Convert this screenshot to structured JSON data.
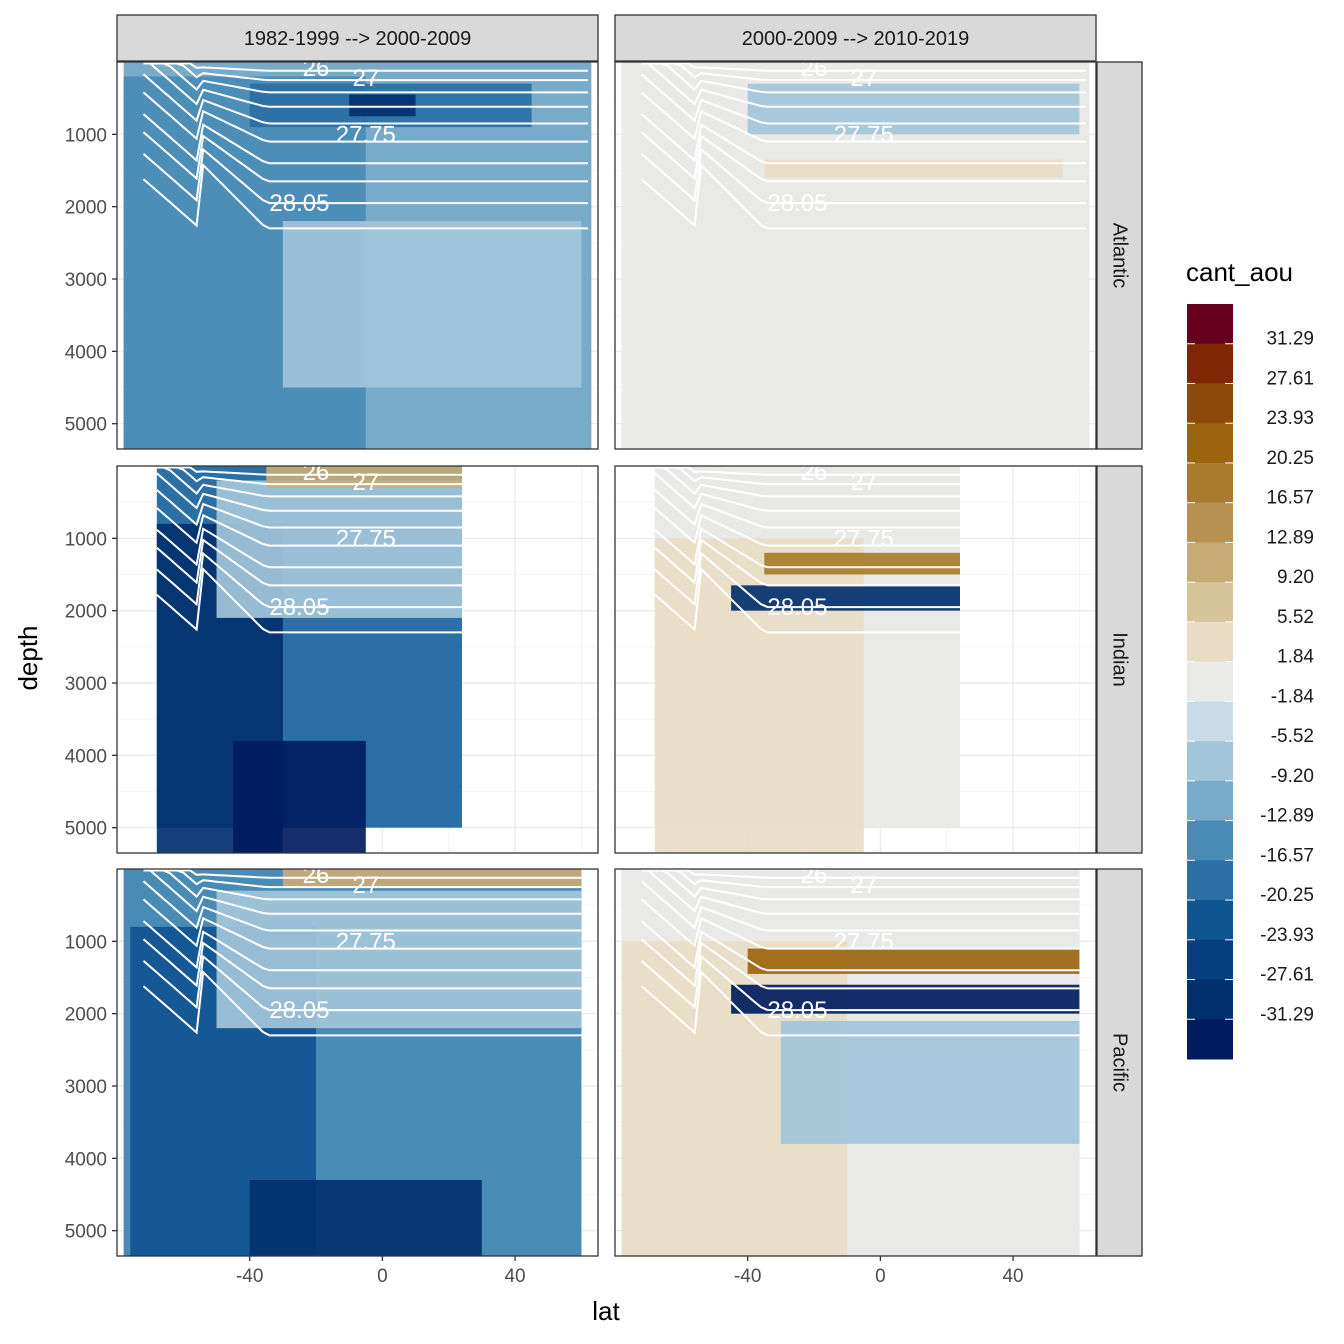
{
  "chart_data": {
    "type": "heatmap",
    "subtype": "faceted filled contour sections (depth vs latitude)",
    "xlabel": "lat",
    "ylabel": "depth",
    "xlim": [
      -80,
      65
    ],
    "ylim": [
      5350,
      0
    ],
    "x_ticks": [
      "-40",
      "0",
      "40"
    ],
    "x_tick_values": [
      -40,
      0,
      40
    ],
    "y_ticks": [
      "1000",
      "2000",
      "3000",
      "4000",
      "5000"
    ],
    "y_tick_values": [
      1000,
      2000,
      3000,
      4000,
      5000
    ],
    "columns": [
      "1982-1999 --> 2000-2009",
      "2000-2009 --> 2010-2019"
    ],
    "rows": [
      "Atlantic",
      "Indian",
      "Pacific"
    ],
    "legend": {
      "title": "cant_aou",
      "breaks": [
        "31.29",
        "27.61",
        "23.93",
        "20.25",
        "16.57",
        "12.89",
        "9.20",
        "5.52",
        "1.84",
        "-1.84",
        "-5.52",
        "-9.20",
        "-12.89",
        "-16.57",
        "-20.25",
        "-23.93",
        "-27.61",
        "-31.29"
      ],
      "colors": [
        "#67001f",
        "#7f2704",
        "#8c4a0a",
        "#9c640f",
        "#a87c2c",
        "#b89050",
        "#c7ab74",
        "#d8c49b",
        "#e8dcc4",
        "#e9eae8",
        "#c8dce8",
        "#a2c5da",
        "#77abc9",
        "#4a8bb6",
        "#2a6fa5",
        "#0f5592",
        "#063e80",
        "#02306e",
        "#001c5e"
      ]
    },
    "contour_labels": [
      "26",
      "27",
      "27.75",
      "28.05"
    ],
    "panels": [
      {
        "column": "1982-1999 --> 2000-2009",
        "row": "Atlantic",
        "dominant_level": "-12.89",
        "summary": "Moderate negative values in the deep south and mid-depths, strongest negative near 500-1000 m between 20S and 40N",
        "layers": [
          {
            "level": "-9.20",
            "lat_range": [
              -78,
              63
            ],
            "depth_range": [
              0,
              5350
            ]
          },
          {
            "level": "-12.89",
            "lat_range": [
              -78,
              -5
            ],
            "depth_range": [
              200,
              5350
            ]
          },
          {
            "level": "-5.52",
            "lat_range": [
              -30,
              60
            ],
            "depth_range": [
              2200,
              4500
            ]
          },
          {
            "level": "-16.57",
            "lat_range": [
              -40,
              45
            ],
            "depth_range": [
              300,
              900
            ]
          },
          {
            "level": "-27.61",
            "lat_range": [
              -10,
              10
            ],
            "depth_range": [
              450,
              750
            ]
          }
        ]
      },
      {
        "column": "2000-2009 --> 2010-2019",
        "row": "Atlantic",
        "dominant_level": "1.84",
        "summary": "Near-zero change almost everywhere; weak negative band at 500-1000 m and weak positive band near 1500 m",
        "layers": [
          {
            "level": "1.84",
            "lat_range": [
              -78,
              63
            ],
            "depth_range": [
              0,
              5350
            ]
          },
          {
            "level": "-5.52",
            "lat_range": [
              -40,
              60
            ],
            "depth_range": [
              300,
              1000
            ]
          },
          {
            "level": "5.52",
            "lat_range": [
              -35,
              55
            ],
            "depth_range": [
              1350,
              1600
            ]
          }
        ]
      },
      {
        "column": "1982-1999 --> 2000-2009",
        "row": "Indian",
        "dominant_level": "-27.61",
        "summary": "Very strong negative values in the deep southern Indian; positive near surface north of 30S",
        "layers": [
          {
            "level": "-16.57",
            "lat_range": [
              -68,
              24
            ],
            "depth_range": [
              0,
              5000
            ]
          },
          {
            "level": "-27.61",
            "lat_range": [
              -68,
              -30
            ],
            "depth_range": [
              800,
              5350
            ]
          },
          {
            "level": "-31.29",
            "lat_range": [
              -45,
              -5
            ],
            "depth_range": [
              3800,
              5350
            ]
          },
          {
            "level": "-5.52",
            "lat_range": [
              -50,
              24
            ],
            "depth_range": [
              200,
              2100
            ]
          },
          {
            "level": "12.89",
            "lat_range": [
              -35,
              24
            ],
            "depth_range": [
              0,
              300
            ]
          }
        ]
      },
      {
        "column": "2000-2009 --> 2010-2019",
        "row": "Indian",
        "dominant_level": "5.52",
        "summary": "Positive in deep south, strong dipole of positive (~1300 m) and negative (~1800 m) bands north of 40S",
        "layers": [
          {
            "level": "1.84",
            "lat_range": [
              -68,
              24
            ],
            "depth_range": [
              0,
              5000
            ]
          },
          {
            "level": "5.52",
            "lat_range": [
              -68,
              -5
            ],
            "depth_range": [
              1000,
              5350
            ]
          },
          {
            "level": "20.25",
            "lat_range": [
              -35,
              24
            ],
            "depth_range": [
              1200,
              1500
            ]
          },
          {
            "level": "-27.61",
            "lat_range": [
              -45,
              24
            ],
            "depth_range": [
              1650,
              2000
            ]
          }
        ]
      },
      {
        "column": "1982-1999 --> 2000-2009",
        "row": "Pacific",
        "dominant_level": "-16.57",
        "summary": "Broad negative values at depth, strongest in the south; positive near surface in the tropics",
        "layers": [
          {
            "level": "-12.89",
            "lat_range": [
              -78,
              60
            ],
            "depth_range": [
              0,
              5350
            ]
          },
          {
            "level": "-20.25",
            "lat_range": [
              -76,
              -20
            ],
            "depth_range": [
              800,
              5350
            ]
          },
          {
            "level": "-27.61",
            "lat_range": [
              -40,
              30
            ],
            "depth_range": [
              4300,
              5350
            ]
          },
          {
            "level": "-5.52",
            "lat_range": [
              -50,
              60
            ],
            "depth_range": [
              300,
              2200
            ]
          },
          {
            "level": "12.89",
            "lat_range": [
              -30,
              60
            ],
            "depth_range": [
              0,
              250
            ]
          }
        ]
      },
      {
        "column": "2000-2009 --> 2010-2019",
        "row": "Pacific",
        "dominant_level": "5.52",
        "summary": "Positive at depth in the south; strong positive band ~1200 m and strong negative band ~1800 m north of 40S",
        "layers": [
          {
            "level": "1.84",
            "lat_range": [
              -78,
              60
            ],
            "depth_range": [
              0,
              5350
            ]
          },
          {
            "level": "5.52",
            "lat_range": [
              -78,
              -10
            ],
            "depth_range": [
              1000,
              5350
            ]
          },
          {
            "level": "-5.52",
            "lat_range": [
              -30,
              60
            ],
            "depth_range": [
              2100,
              3800
            ]
          },
          {
            "level": "23.93",
            "lat_range": [
              -40,
              60
            ],
            "depth_range": [
              1100,
              1450
            ]
          },
          {
            "level": "-31.29",
            "lat_range": [
              -45,
              60
            ],
            "depth_range": [
              1600,
              2000
            ]
          }
        ]
      }
    ]
  }
}
